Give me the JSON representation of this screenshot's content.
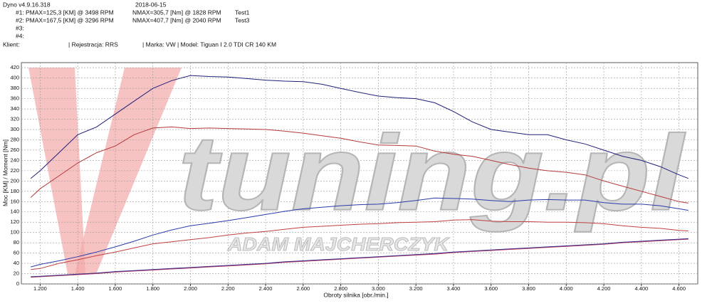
{
  "header": {
    "app": "Dyno v4.9.16.318",
    "date": "2018-06-15",
    "runs": [
      {
        "id": "#1:",
        "pmax": "PMAX=125,3 [KM] @ 3498 RPM",
        "nmax": "NMAX=305,7 [Nm] @ 1828 RPM",
        "name": "Test1"
      },
      {
        "id": "#2:",
        "pmax": "PMAX=167,5 [KM] @ 3296 RPM",
        "nmax": "NMAX=407,7 [Nm] @ 2040 RPM",
        "name": "Test3"
      },
      {
        "id": "#3:"
      },
      {
        "id": "#4:"
      }
    ],
    "client": "Klient:",
    "registration": "| Rejestracja: RRS",
    "vehicle": "| Marka: VW | Model: Tiguan I 2.0 TDI CR 140 KM"
  },
  "watermark": {
    "brand": "tuning.pl",
    "author": "ADAM MAJCHERCZYK"
  },
  "chart_data": {
    "type": "line",
    "x_label": "Obroty silnika [obr./min.]",
    "y_label": "Moc [KM] / Moment [Nm]",
    "x": [
      1150,
      1200,
      1300,
      1400,
      1500,
      1600,
      1700,
      1800,
      1900,
      2000,
      2100,
      2200,
      2300,
      2400,
      2500,
      2600,
      2700,
      2800,
      2900,
      3000,
      3100,
      3200,
      3300,
      3400,
      3500,
      3600,
      3700,
      3800,
      3900,
      4000,
      4100,
      4200,
      4300,
      4400,
      4500,
      4600,
      4650
    ],
    "series": [
      {
        "color": "#1f1f78",
        "values": [
          205,
          220,
          255,
          290,
          305,
          330,
          355,
          380,
          395,
          405,
          403,
          402,
          399,
          396,
          394,
          393,
          388,
          380,
          372,
          365,
          362,
          360,
          352,
          335,
          315,
          300,
          295,
          290,
          290,
          280,
          272,
          260,
          248,
          240,
          228,
          212,
          205
        ]
      },
      {
        "color": "#b53a3a",
        "values": [
          168,
          185,
          210,
          235,
          255,
          268,
          290,
          303,
          305,
          302,
          303,
          302,
          301,
          300,
          297,
          293,
          288,
          283,
          276,
          270,
          269,
          268,
          258,
          252,
          248,
          240,
          232,
          225,
          220,
          217,
          212,
          200,
          190,
          180,
          170,
          160,
          157
        ]
      },
      {
        "color": "#2a3aa8",
        "values": [
          33,
          38,
          45,
          53,
          62,
          72,
          83,
          95,
          105,
          113,
          118,
          123,
          129,
          135,
          141,
          146,
          149,
          152,
          154,
          155,
          158,
          162,
          167,
          166,
          165,
          162,
          160,
          163,
          164,
          163,
          163,
          158,
          155,
          155,
          152,
          146,
          143
        ]
      },
      {
        "color": "#c04040",
        "values": [
          28,
          30,
          40,
          47,
          55,
          62,
          70,
          78,
          82,
          86,
          90,
          95,
          99,
          102,
          106,
          110,
          112,
          114,
          116,
          117,
          119,
          120,
          121,
          124,
          125,
          122,
          121,
          121,
          120,
          120,
          119,
          117,
          113,
          110,
          108,
          104,
          103
        ]
      },
      {
        "color": "#c04060",
        "values": [
          13,
          14,
          16,
          18,
          20,
          23,
          25,
          27,
          29,
          31,
          33,
          35,
          37,
          39,
          42,
          44,
          46,
          48,
          50,
          52,
          54,
          56,
          58,
          61,
          63,
          65,
          67,
          69,
          71,
          73,
          75,
          77,
          80,
          82,
          84,
          86,
          87
        ]
      },
      {
        "color": "#3a2a88",
        "values": [
          14,
          15,
          17,
          19,
          21,
          24,
          26,
          28,
          30,
          32,
          34,
          36,
          38,
          40,
          43,
          45,
          47,
          49,
          51,
          53,
          55,
          57,
          59,
          62,
          64,
          66,
          68,
          70,
          72,
          74,
          76,
          78,
          81,
          83,
          85,
          87,
          88
        ]
      }
    ],
    "xlim": [
      1100,
      4700
    ],
    "ylim": [
      0,
      430
    ],
    "xticks": [
      {
        "value": 1200,
        "label": "1.200"
      },
      {
        "value": 1400,
        "label": "1.400"
      },
      {
        "value": 1600,
        "label": "1.600"
      },
      {
        "value": 1800,
        "label": "1.800"
      },
      {
        "value": 2000,
        "label": "2.000"
      },
      {
        "value": 2200,
        "label": "2.200"
      },
      {
        "value": 2400,
        "label": "2.400"
      },
      {
        "value": 2600,
        "label": "2.600"
      },
      {
        "value": 2800,
        "label": "2.800"
      },
      {
        "value": 3000,
        "label": "3.000"
      },
      {
        "value": 3200,
        "label": "3.200"
      },
      {
        "value": 3400,
        "label": "3.400"
      },
      {
        "value": 3600,
        "label": "3.600"
      },
      {
        "value": 3800,
        "label": "3.800"
      },
      {
        "value": 4000,
        "label": "4.000"
      },
      {
        "value": 4200,
        "label": "4.200"
      },
      {
        "value": 4400,
        "label": "4.400"
      },
      {
        "value": 4600,
        "label": "4.600"
      }
    ],
    "yticks": [
      0,
      20,
      40,
      60,
      80,
      100,
      120,
      140,
      160,
      180,
      200,
      220,
      240,
      260,
      280,
      300,
      320,
      340,
      360,
      380,
      400,
      420
    ],
    "grid": true
  }
}
